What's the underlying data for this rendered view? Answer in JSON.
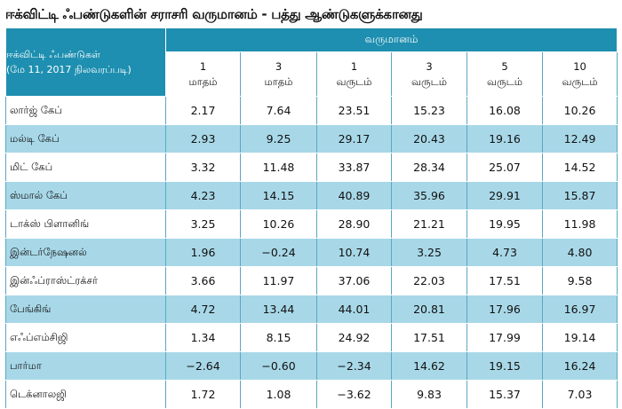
{
  "title": "ஈக்விட்டி ஃபண்டுகளின் சராசரி வருமானம் - பத்து ஆண்டுகளுக்கானது",
  "header": {
    "fund_label_line1": "ஈக்விட்டி ஃபண்டுகள்",
    "fund_label_line2": "(மே 11, 2017  நிலவரப்படி)",
    "returns_label": "வருமானம்",
    "periods": [
      {
        "n": "1",
        "unit": "மாதம்"
      },
      {
        "n": "3",
        "unit": "மாதம்"
      },
      {
        "n": "1",
        "unit": "வருடம்"
      },
      {
        "n": "3",
        "unit": "வருடம்"
      },
      {
        "n": "5",
        "unit": "வருடம்"
      },
      {
        "n": "10",
        "unit": "வருடம்"
      }
    ]
  },
  "rows": [
    {
      "name": "லார்ஜ் கேப்",
      "values": [
        "2.17",
        "7.64",
        "23.51",
        "15.23",
        "16.08",
        "10.26"
      ]
    },
    {
      "name": "மல்டி கேப்",
      "values": [
        "2.93",
        "9.25",
        "29.17",
        "20.43",
        "19.16",
        "12.49"
      ]
    },
    {
      "name": "மிட் கேப்",
      "values": [
        "3.32",
        "11.48",
        "33.87",
        "28.34",
        "25.07",
        "14.52"
      ]
    },
    {
      "name": "ஸ்மால் கேப்",
      "values": [
        "4.23",
        "14.15",
        "40.89",
        "35.96",
        "29.91",
        "15.87"
      ]
    },
    {
      "name": "டாக்ஸ் பிளானிங்",
      "values": [
        "3.25",
        "10.26",
        "28.90",
        "21.21",
        "19.95",
        "11.98"
      ]
    },
    {
      "name": "இன்டர்நேஷனல்",
      "values": [
        "1.96",
        "−0.24",
        "10.74",
        "3.25",
        "4.73",
        "4.80"
      ]
    },
    {
      "name": "இன்ஃப்ராஸ்ட்ரக்சர்",
      "values": [
        "3.66",
        "11.97",
        "37.06",
        "22.03",
        "17.51",
        "9.58"
      ]
    },
    {
      "name": "பேங்கிங்",
      "values": [
        "4.72",
        "13.44",
        "44.01",
        "20.81",
        "17.96",
        "16.97"
      ]
    },
    {
      "name": "எஃப்எம்சிஜி",
      "values": [
        "1.34",
        "8.15",
        "24.92",
        "17.51",
        "17.99",
        "19.14"
      ]
    },
    {
      "name": "பார்மா",
      "values": [
        "−2.64",
        "−0.60",
        "−2.34",
        "14.62",
        "19.15",
        "16.24"
      ]
    },
    {
      "name": "டெக்னாலஜி",
      "values": [
        "1.72",
        "1.08",
        "−3.62",
        "9.83",
        "15.37",
        "7.03"
      ]
    }
  ],
  "colors": {
    "header_bg": "#1e8fb0",
    "alt_row_bg": "#a8d8e8",
    "plain_row_bg": "#ffffff"
  }
}
